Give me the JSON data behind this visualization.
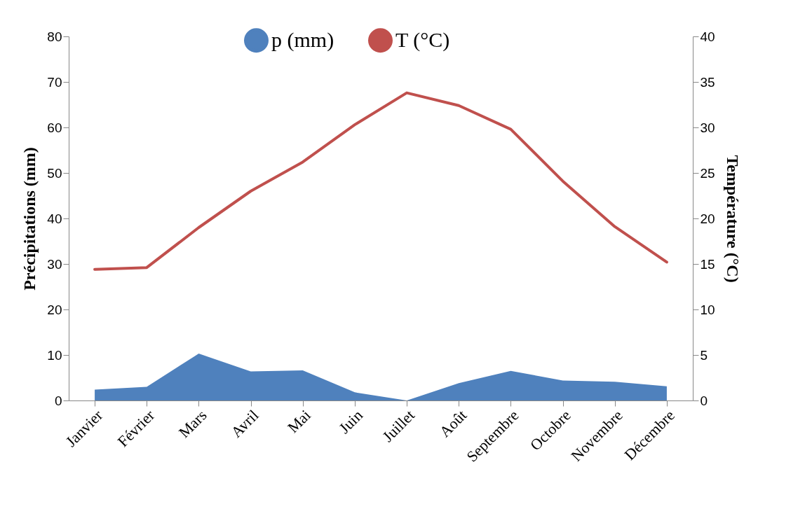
{
  "chart_data": {
    "type": "area",
    "ylabel": "Précipitations (mm)",
    "y2label": "Température (°C)",
    "categories": [
      "Janvier",
      "Février",
      "Mars",
      "Avril",
      "Mai",
      "Juin",
      "Juillet",
      "Août",
      "Septembre",
      "Octobre",
      "Novembre",
      "Décembre"
    ],
    "series": [
      {
        "name": "p (mm)",
        "color": "#4f81bd",
        "values": [
          2.4,
          3.0,
          10.3,
          6.4,
          6.6,
          1.8,
          0,
          3.8,
          6.5,
          4.4,
          4.1,
          3.1
        ]
      },
      {
        "name": "T (°C)",
        "type": "line",
        "axis": "y2",
        "color": "#c0504d",
        "values": [
          14.4,
          14.6,
          19.0,
          23.0,
          26.2,
          30.3,
          33.8,
          32.4,
          29.8,
          24.1,
          19.1,
          15.2
        ]
      }
    ],
    "ylim": [
      0,
      80
    ],
    "yticks": [
      0,
      10,
      20,
      30,
      40,
      50,
      60,
      70,
      80
    ],
    "y2lim": [
      0,
      40
    ],
    "y2ticks": [
      0,
      5,
      10,
      15,
      20,
      25,
      30,
      35,
      40
    ],
    "grid": false,
    "legend": "top"
  }
}
